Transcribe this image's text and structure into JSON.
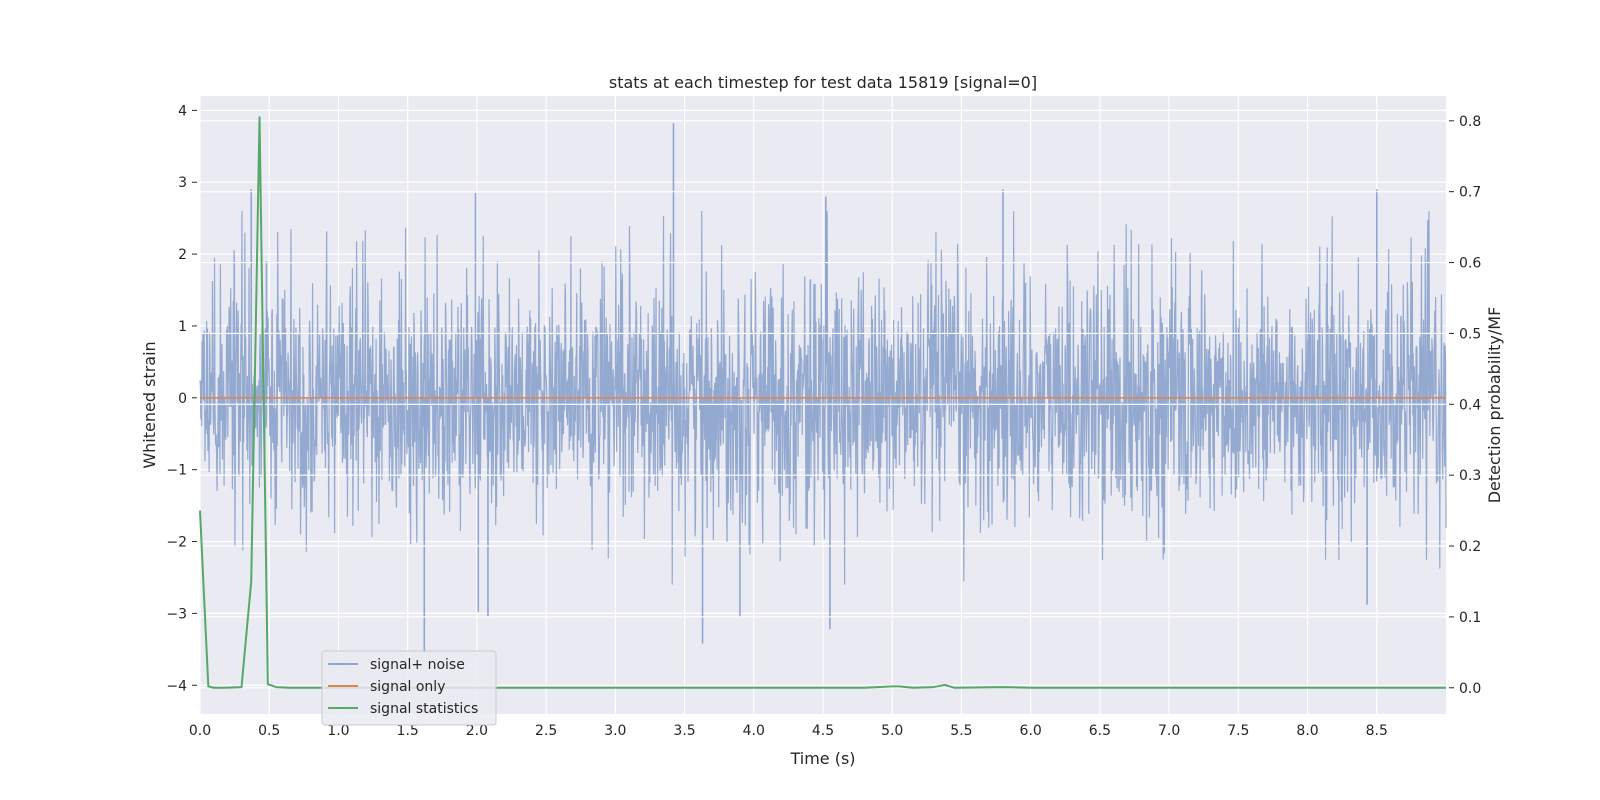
{
  "chart_data": {
    "type": "line",
    "title": "stats at each timestep for test data 15819 [signal=0]",
    "xlabel": "Time (s)",
    "ylabel": "Whitened strain",
    "y2label": "Detection probability/MF",
    "xlim": [
      0.0,
      9.0
    ],
    "ylim": [
      -4.4,
      4.2
    ],
    "y2lim": [
      -0.037,
      0.835
    ],
    "xticks": [
      "0.0",
      "0.5",
      "1.0",
      "1.5",
      "2.0",
      "2.5",
      "3.0",
      "3.5",
      "4.0",
      "4.5",
      "5.0",
      "5.5",
      "6.0",
      "6.5",
      "7.0",
      "7.5",
      "8.0",
      "8.5"
    ],
    "yticks": [
      "4",
      "3",
      "2",
      "1",
      "0",
      "−1",
      "−2",
      "−3",
      "−4"
    ],
    "y2ticks": [
      "0.8",
      "0.7",
      "0.6",
      "0.5",
      "0.4",
      "0.3",
      "0.2",
      "0.1",
      "0.0"
    ],
    "grid": true,
    "legend_position": "lower-left",
    "series": [
      {
        "name": "signal+ noise",
        "axis": "left",
        "color": "#8fa5ce",
        "noise_sigma": 0.85,
        "peaks": [
          {
            "x": 0.37,
            "y": 2.9
          },
          {
            "x": 0.48,
            "y": 1.9
          },
          {
            "x": 1.62,
            "y": -3.55
          },
          {
            "x": 1.99,
            "y": 2.85
          },
          {
            "x": 2.01,
            "y": -2.98
          },
          {
            "x": 2.08,
            "y": -3.05
          },
          {
            "x": 3.42,
            "y": 3.82
          },
          {
            "x": 3.63,
            "y": -3.42
          },
          {
            "x": 3.9,
            "y": -3.05
          },
          {
            "x": 4.52,
            "y": 2.8
          },
          {
            "x": 4.55,
            "y": -3.22
          },
          {
            "x": 5.8,
            "y": 2.9
          },
          {
            "x": 8.43,
            "y": -2.88
          },
          {
            "x": 8.5,
            "y": 2.9
          }
        ]
      },
      {
        "name": "signal only",
        "axis": "left",
        "color": "#dd8452",
        "x": [
          0.0,
          9.0
        ],
        "y": [
          0.0,
          0.0
        ]
      },
      {
        "name": "signal statistics",
        "axis": "right",
        "color": "#55a868",
        "x": [
          0.0,
          0.06,
          0.1,
          0.18,
          0.3,
          0.37,
          0.43,
          0.49,
          0.55,
          0.65,
          1.0,
          2.0,
          3.0,
          4.0,
          4.8,
          5.0,
          5.05,
          5.15,
          5.3,
          5.38,
          5.45,
          5.8,
          6.0,
          7.0,
          8.0,
          9.0
        ],
        "y": [
          0.25,
          0.002,
          0.0,
          0.0,
          0.001,
          0.15,
          0.805,
          0.005,
          0.001,
          0.0,
          0.0,
          0.0,
          0.0,
          0.0,
          0.0,
          0.002,
          0.002,
          0.0,
          0.001,
          0.004,
          0.0,
          0.001,
          0.0,
          0.0,
          0.0,
          0.0
        ]
      }
    ]
  }
}
